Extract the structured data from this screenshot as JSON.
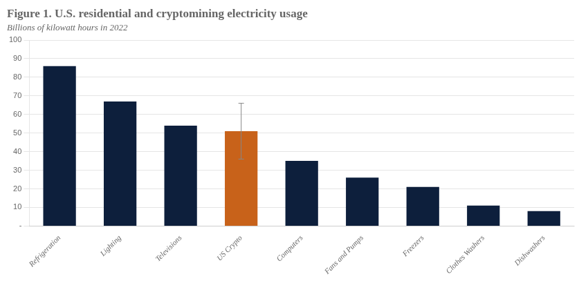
{
  "chart_data": {
    "type": "bar",
    "title": "Figure 1. U.S. residential and cryptomining electricity usage",
    "subtitle": "Billions of kilowatt hours in 2022",
    "categories": [
      "Refrigeration",
      "Lighting",
      "Televisions",
      "US Crypto",
      "Computers",
      "Fans and Pumps",
      "Freezers",
      "Clothes Washers",
      "Dishwashers"
    ],
    "values": [
      86,
      67,
      54,
      51,
      35,
      26,
      21,
      11,
      8
    ],
    "colors": [
      "#0d1f3c",
      "#0d1f3c",
      "#0d1f3c",
      "#c8621a",
      "#0d1f3c",
      "#0d1f3c",
      "#0d1f3c",
      "#0d1f3c",
      "#0d1f3c"
    ],
    "error_bars": [
      {
        "category": "US Crypto",
        "low": 15,
        "high": 15,
        "color": "#888888"
      }
    ],
    "ylim": [
      0,
      100
    ],
    "yticks": [
      {
        "value": 0,
        "label": "-"
      },
      10,
      20,
      30,
      40,
      50,
      60,
      70,
      80,
      90,
      100
    ],
    "grid": true
  }
}
